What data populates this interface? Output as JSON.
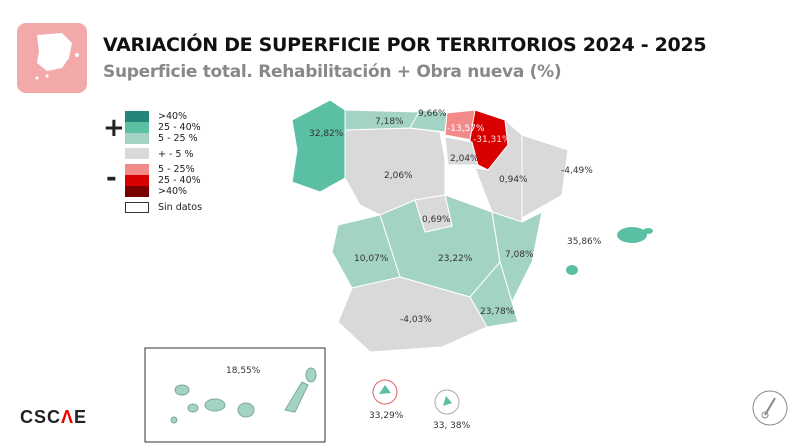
{
  "header": {
    "title": "VARIACIÓN DE SUPERFICIE POR TERRITORIOS 2024 - 2025",
    "subtitle": "Superficie total. Rehabilitación + Obra nueva (%)"
  },
  "legend": {
    "plus_sign": "+",
    "minus_sign": "-",
    "items": [
      {
        "label": ">40%",
        "color": "#26857a"
      },
      {
        "label": "25 - 40%",
        "color": "#5bbfa3"
      },
      {
        "label": "5 - 25 %",
        "color": "#a3d3c5"
      },
      {
        "label": "+ - 5 %",
        "color": "#d9d9d9"
      },
      {
        "label": "5 - 25%",
        "color": "#f28a8a"
      },
      {
        "label": "25 - 40%",
        "color": "#d90000"
      },
      {
        "label": ">40%",
        "color": "#7a0000"
      },
      {
        "label": "Sin datos",
        "color": "#ffffff"
      }
    ]
  },
  "regions": {
    "galicia": {
      "value": "32,82%",
      "color": "#5bbfa3"
    },
    "asturias": {
      "value": "7,18%",
      "color": "#a3d3c5"
    },
    "cantabria": {
      "value": "9,66%",
      "color": "#a3d3c5"
    },
    "pais_vasco": {
      "value": "-13,57%",
      "color": "#f28a8a"
    },
    "navarra": {
      "value": "-31,31%",
      "color": "#d90000"
    },
    "la_rioja": {
      "value": "2,04%",
      "color": "#d9d9d9"
    },
    "castilla_leon": {
      "value": "2,06%",
      "color": "#d9d9d9"
    },
    "aragon": {
      "value": "0,94%",
      "color": "#d9d9d9"
    },
    "cataluna": {
      "value": "-4,49%",
      "color": "#d9d9d9"
    },
    "madrid": {
      "value": "0,69%",
      "color": "#d9d9d9"
    },
    "extremadura": {
      "value": "10,07%",
      "color": "#a3d3c5"
    },
    "castilla_la_mancha": {
      "value": "23,22%",
      "color": "#a3d3c5"
    },
    "valencia": {
      "value": "7,08%",
      "color": "#a3d3c5"
    },
    "murcia": {
      "value": "23,78%",
      "color": "#a3d3c5"
    },
    "andalucia": {
      "value": "-4,03%",
      "color": "#d9d9d9"
    },
    "baleares": {
      "value": "35,86%",
      "color": "#5bbfa3"
    },
    "canarias": {
      "value": "18,55%",
      "color": "#a3d3c5"
    },
    "ceuta": {
      "value": "33,29%",
      "color": "#5bbfa3"
    },
    "melilla": {
      "value": "33, 38%",
      "color": "#5bbfa3"
    }
  },
  "brand": {
    "name_a": "CSC",
    "name_b": "Λ",
    "name_c": "E"
  }
}
